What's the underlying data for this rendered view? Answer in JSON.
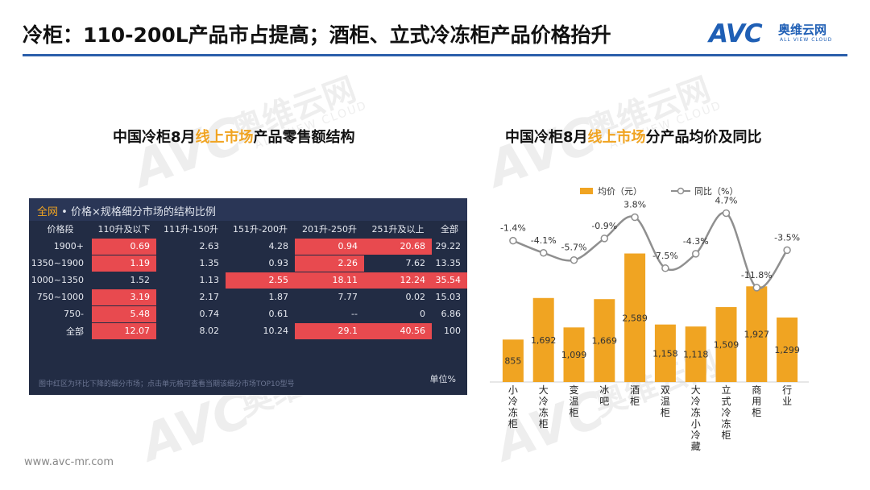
{
  "header": {
    "title": "冷柜：110-200L产品市占提高；酒柜、立式冷冻柜产品价格抬升",
    "logo_avc": "AVC",
    "logo_cn": "奥维云网",
    "logo_en": "ALL VIEW CLOUD"
  },
  "watermark": {
    "avc": "AVC",
    "cn": "奥维云网",
    "en": "ALL VIEW CLOUD"
  },
  "footer": {
    "url": "www.avc-mr.com"
  },
  "colors": {
    "accent": "#f0a422",
    "brand": "#2b5fab",
    "table_bg": "#222c44",
    "highlight_red": "#e84a4f",
    "bar": "#f0a422",
    "line": "#8f8f8f"
  },
  "chart_data": [
    {
      "type": "table",
      "title_pre": "中国冷柜8月",
      "title_hl": "线上市场",
      "title_post": "产品零售额结构",
      "header_prefix": "全网",
      "header_rest": " • 价格×规格细分市场的结构比例",
      "columns": [
        "价格段",
        "110升及以下",
        "111升-150升",
        "151升-200升",
        "201升-250升",
        "251升及以上",
        "全部"
      ],
      "rows": [
        {
          "label": "1900+",
          "values": [
            "0.69",
            "2.63",
            "4.28",
            "0.94",
            "20.68",
            "29.22"
          ],
          "red": [
            true,
            false,
            false,
            true,
            true,
            false
          ]
        },
        {
          "label": "1350~1900",
          "values": [
            "1.19",
            "1.35",
            "0.93",
            "2.26",
            "7.62",
            "13.35"
          ],
          "red": [
            true,
            false,
            false,
            true,
            false,
            false
          ]
        },
        {
          "label": "1000~1350",
          "values": [
            "1.52",
            "1.13",
            "2.55",
            "18.11",
            "12.24",
            "35.54"
          ],
          "red": [
            false,
            false,
            true,
            true,
            true,
            true
          ]
        },
        {
          "label": "750~1000",
          "values": [
            "3.19",
            "2.17",
            "1.87",
            "7.77",
            "0.02",
            "15.03"
          ],
          "red": [
            true,
            false,
            false,
            false,
            false,
            false
          ]
        },
        {
          "label": "750-",
          "values": [
            "5.48",
            "0.74",
            "0.61",
            "--",
            "0",
            "6.86"
          ],
          "red": [
            true,
            false,
            false,
            false,
            false,
            false
          ]
        },
        {
          "label": "全部",
          "values": [
            "12.07",
            "8.02",
            "10.24",
            "29.1",
            "40.56",
            "100"
          ],
          "red": [
            true,
            false,
            false,
            true,
            true,
            false
          ]
        }
      ],
      "note": "图中红区为环比下降的细分市场；点击单元格可查看当期该细分市场TOP10型号",
      "unit": "单位%"
    },
    {
      "type": "bar",
      "title_pre": "中国冷柜8月",
      "title_hl": "线上市场",
      "title_post": "分产品均价及同比",
      "categories": [
        "小冷冻柜",
        "大冷冻柜",
        "变温柜",
        "冰吧",
        "酒柜",
        "双温柜",
        "大冷冻小冷藏",
        "立式冷冻柜",
        "商用柜",
        "行业"
      ],
      "series": [
        {
          "name": "均价（元）",
          "type": "bar",
          "values": [
            855,
            1692,
            1099,
            1669,
            2589,
            1158,
            1118,
            1509,
            1927,
            1299
          ],
          "labels": [
            "855",
            "1,692",
            "1,099",
            "1,669",
            "2,589",
            "1,158",
            "1,118",
            "1,509",
            "1,927",
            "1,299"
          ]
        },
        {
          "name": "同比（%）",
          "type": "line",
          "values": [
            -1.4,
            -4.1,
            -5.7,
            -0.9,
            3.8,
            -7.5,
            -4.3,
            4.7,
            -11.8,
            -3.5
          ],
          "labels": [
            "-1.4%",
            "-4.1%",
            "-5.7%",
            "-0.9%",
            "3.8%",
            "-7.5%",
            "-4.3%",
            "4.7%",
            "-11.8%",
            "-3.5%"
          ]
        }
      ],
      "legend": "top",
      "grid": false
    }
  ]
}
